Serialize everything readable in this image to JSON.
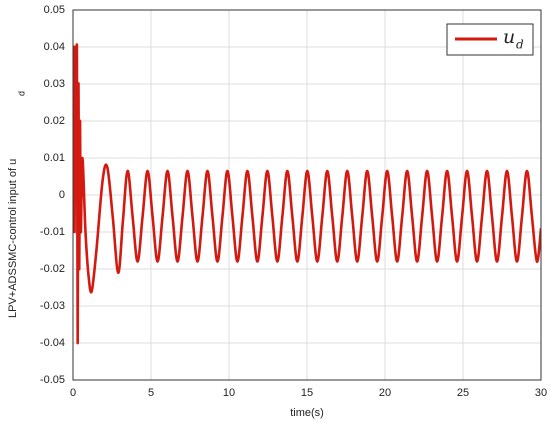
{
  "chart_data": {
    "type": "line",
    "xlabel": "time(s)",
    "ylabel": "LPV+ADSSMC-control input of u",
    "ylabel_subscript": "d",
    "xlim": [
      0,
      30
    ],
    "xticks": [
      0,
      5,
      10,
      15,
      20,
      25,
      30
    ],
    "ylim": [
      -0.05,
      0.05
    ],
    "yticks": [
      -0.05,
      -0.04,
      -0.03,
      -0.02,
      -0.01,
      0,
      0.01,
      0.02,
      0.03,
      0.04,
      0.05
    ],
    "grid": true,
    "legend": "upper right",
    "x": [
      0,
      0.05,
      0.1,
      0.15,
      0.2,
      0.25,
      0.3,
      0.35,
      0.4,
      0.45,
      0.5,
      0.6,
      0.8,
      1.0,
      1.2,
      1.5,
      1.9,
      2.2,
      2.55,
      2.9,
      3.2,
      3.5,
      3.82,
      4.14,
      4.46,
      4.78,
      5.1,
      5.42,
      5.74,
      6.06,
      6.38,
      6.7,
      7.02,
      7.34,
      7.66,
      7.98,
      8.3,
      8.62,
      8.94,
      9.26,
      9.58,
      9.9,
      10.22,
      10.54,
      10.86,
      11.18,
      11.5,
      11.82,
      12.14,
      12.46,
      12.78,
      13.1,
      13.42,
      13.74,
      14.06,
      14.38,
      14.7,
      15.02,
      15.34,
      15.66,
      15.98,
      16.3,
      16.62,
      16.94,
      17.26,
      17.58,
      17.9,
      18.22,
      18.54,
      18.86,
      19.18,
      19.5,
      19.82,
      20.14,
      20.46,
      20.78,
      21.1,
      21.42,
      21.74,
      22.06,
      22.38,
      22.7,
      23.02,
      23.34,
      23.66,
      23.98,
      24.3,
      24.62,
      24.94,
      25.26,
      25.58,
      25.9,
      26.22,
      26.54,
      26.86,
      27.18,
      27.5,
      27.82,
      28.14,
      28.46,
      28.78,
      29.1,
      29.42,
      29.74,
      30
    ],
    "series": [
      {
        "name": "u",
        "name_subscript": "d",
        "color": "#d41a10",
        "values": [
          0,
          0.04,
          -0.01,
          0.04,
          0,
          0.04,
          -0.04,
          0.03,
          -0.02,
          0.02,
          -0.01,
          0.01,
          -0.01,
          -0.022,
          -0.026,
          -0.015,
          0.004,
          0.0075,
          -0.006,
          -0.021,
          -0.007,
          0.0065,
          -0.0058,
          -0.018,
          -0.0058,
          0.0065,
          -0.0058,
          -0.018,
          -0.0058,
          0.0065,
          -0.0058,
          -0.018,
          -0.0058,
          0.0065,
          -0.0058,
          -0.018,
          -0.0058,
          0.0065,
          -0.0058,
          -0.018,
          -0.0058,
          0.0065,
          -0.0058,
          -0.018,
          -0.0058,
          0.0065,
          -0.0058,
          -0.018,
          -0.0058,
          0.0065,
          -0.0058,
          -0.018,
          -0.0058,
          0.0065,
          -0.0058,
          -0.018,
          -0.0058,
          0.0065,
          -0.0058,
          -0.018,
          -0.0058,
          0.0065,
          -0.0058,
          -0.018,
          -0.0058,
          0.0065,
          -0.0058,
          -0.018,
          -0.0058,
          0.0065,
          -0.0058,
          -0.018,
          -0.0058,
          0.0065,
          -0.0058,
          -0.018,
          -0.0058,
          0.0065,
          -0.0058,
          -0.018,
          -0.0058,
          0.0065,
          -0.0058,
          -0.018,
          -0.0058,
          0.0065,
          -0.0058,
          -0.018,
          -0.0058,
          0.0065,
          -0.0058,
          -0.018,
          -0.0058,
          0.0065,
          -0.0058,
          -0.018,
          -0.0058,
          0.0065,
          -0.0058,
          -0.018,
          -0.0058,
          0.0065,
          -0.0058,
          -0.018,
          -0.009
        ]
      }
    ]
  }
}
